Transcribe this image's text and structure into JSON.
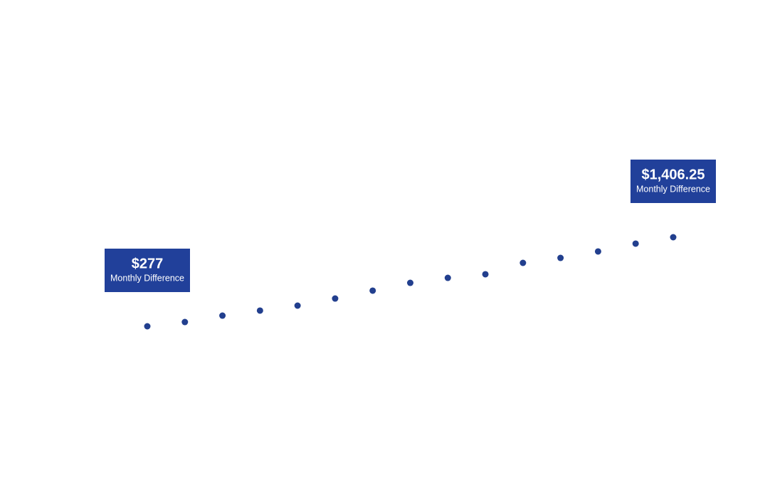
{
  "chart_data": {
    "type": "scatter",
    "values": [
      277,
      331,
      412,
      476,
      539,
      629,
      729,
      828,
      891,
      937,
      1081,
      1144,
      1226,
      1325,
      1406.25
    ],
    "value_labels": [
      "$277",
      null,
      null,
      null,
      null,
      null,
      null,
      null,
      null,
      null,
      null,
      null,
      null,
      null,
      "$1,406.25"
    ],
    "value_sublabels": [
      "Monthly Difference",
      null,
      null,
      null,
      null,
      null,
      null,
      null,
      null,
      null,
      null,
      null,
      null,
      null,
      "Monthly Difference"
    ],
    "color": "#223f8e",
    "label_color": "#21409a"
  }
}
